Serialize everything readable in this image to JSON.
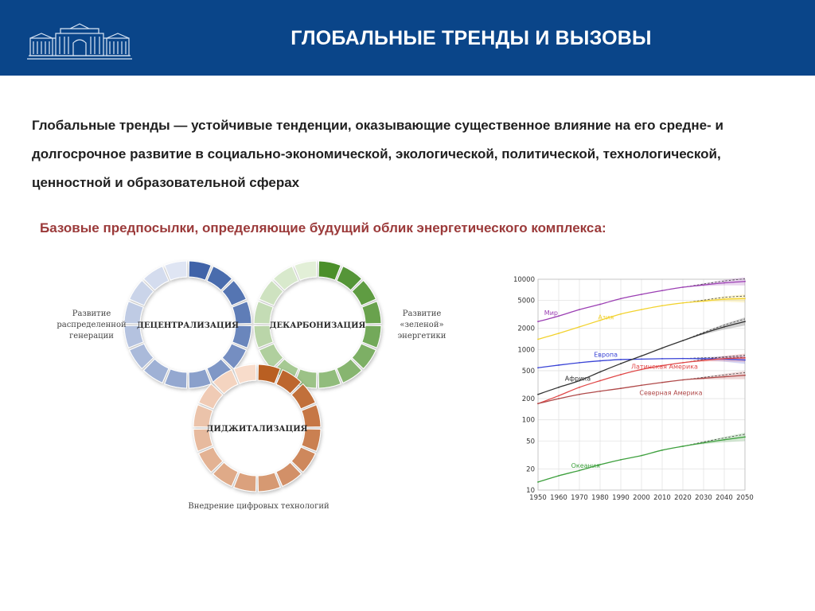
{
  "header": {
    "title": "ГЛОБАЛЬНЫЕ ТРЕНДЫ И ВЫЗОВЫ",
    "background": "#0a4589"
  },
  "definition": {
    "text": "Глобальные тренды — устойчивые тенденции, оказывающие существенное влияние на его средне- и долгосрочное развитие в социально-экономической, экологической, политической, технологической, ценностной и образовательной сферах"
  },
  "subtitle": {
    "text": "Базовые предпосылки, определяющие будущий облик энергетического комплекса:",
    "color": "#9b3a3a"
  },
  "diagram": {
    "rings": [
      {
        "id": "decentralization",
        "label": "ДЕЦЕНТРАЛИЗАЦИЯ",
        "color_dark": "#3f63a8",
        "color_light": "#dfe5f3",
        "side_label": [
          "Развитие",
          "распределенной",
          "генерации"
        ]
      },
      {
        "id": "decarbonization",
        "label": "ДЕКАРБОНИЗАЦИЯ",
        "color_dark": "#4b8f2c",
        "color_light": "#e2efd7",
        "side_label": [
          "Развитие",
          "«зеленой»",
          "энергетики"
        ]
      },
      {
        "id": "digitalization",
        "label": "ДИДЖИТАЛИЗАЦИЯ",
        "color_dark": "#b95e24",
        "color_light": "#f8dccb",
        "side_label": [
          "Внедрение цифровых технологий"
        ]
      }
    ]
  },
  "chart_data": {
    "type": "line",
    "title": "",
    "xlabel": "",
    "ylabel": "",
    "yscale": "log",
    "xlim": [
      1950,
      2050
    ],
    "ylim": [
      10,
      10000
    ],
    "x_ticks": [
      1950,
      1960,
      1970,
      1980,
      1990,
      2000,
      2010,
      2020,
      2030,
      2040,
      2050
    ],
    "y_ticks": [
      10,
      20,
      50,
      100,
      200,
      500,
      1000,
      2000,
      5000,
      10000
    ],
    "y_tick_labels": [
      "10",
      "20",
      "50",
      "100",
      "200",
      "500",
      "1000",
      "2000",
      "5000",
      "10000"
    ],
    "grid": true,
    "x": [
      1950,
      1960,
      1970,
      1980,
      1990,
      2000,
      2010,
      2020,
      2030,
      2040,
      2050
    ],
    "series": [
      {
        "name": "Мир",
        "color": "#9b3fb3",
        "values": [
          2500,
          3000,
          3700,
          4400,
          5300,
          6100,
          6900,
          7700,
          8300,
          8900,
          9300
        ]
      },
      {
        "name": "Азия",
        "color": "#f2d22e",
        "values": [
          1400,
          1700,
          2100,
          2600,
          3200,
          3700,
          4200,
          4600,
          4900,
          5200,
          5300
        ]
      },
      {
        "name": "Европа",
        "color": "#3a44d6",
        "values": [
          550,
          600,
          650,
          690,
          720,
          730,
          740,
          745,
          740,
          730,
          710
        ]
      },
      {
        "name": "Африка",
        "color": "#333333",
        "values": [
          230,
          290,
          360,
          480,
          630,
          810,
          1050,
          1340,
          1700,
          2100,
          2500
        ]
      },
      {
        "name": "Латинская Америка",
        "color": "#e04848",
        "values": [
          170,
          220,
          290,
          360,
          440,
          520,
          590,
          650,
          700,
          740,
          760
        ]
      },
      {
        "name": "Северная Америка",
        "color": "#b04a4a",
        "values": [
          170,
          200,
          230,
          255,
          280,
          310,
          340,
          370,
          390,
          410,
          430
        ]
      },
      {
        "name": "Океания",
        "color": "#3ea03e",
        "values": [
          13,
          16,
          19,
          23,
          27,
          31,
          37,
          42,
          47,
          52,
          57
        ]
      }
    ]
  }
}
